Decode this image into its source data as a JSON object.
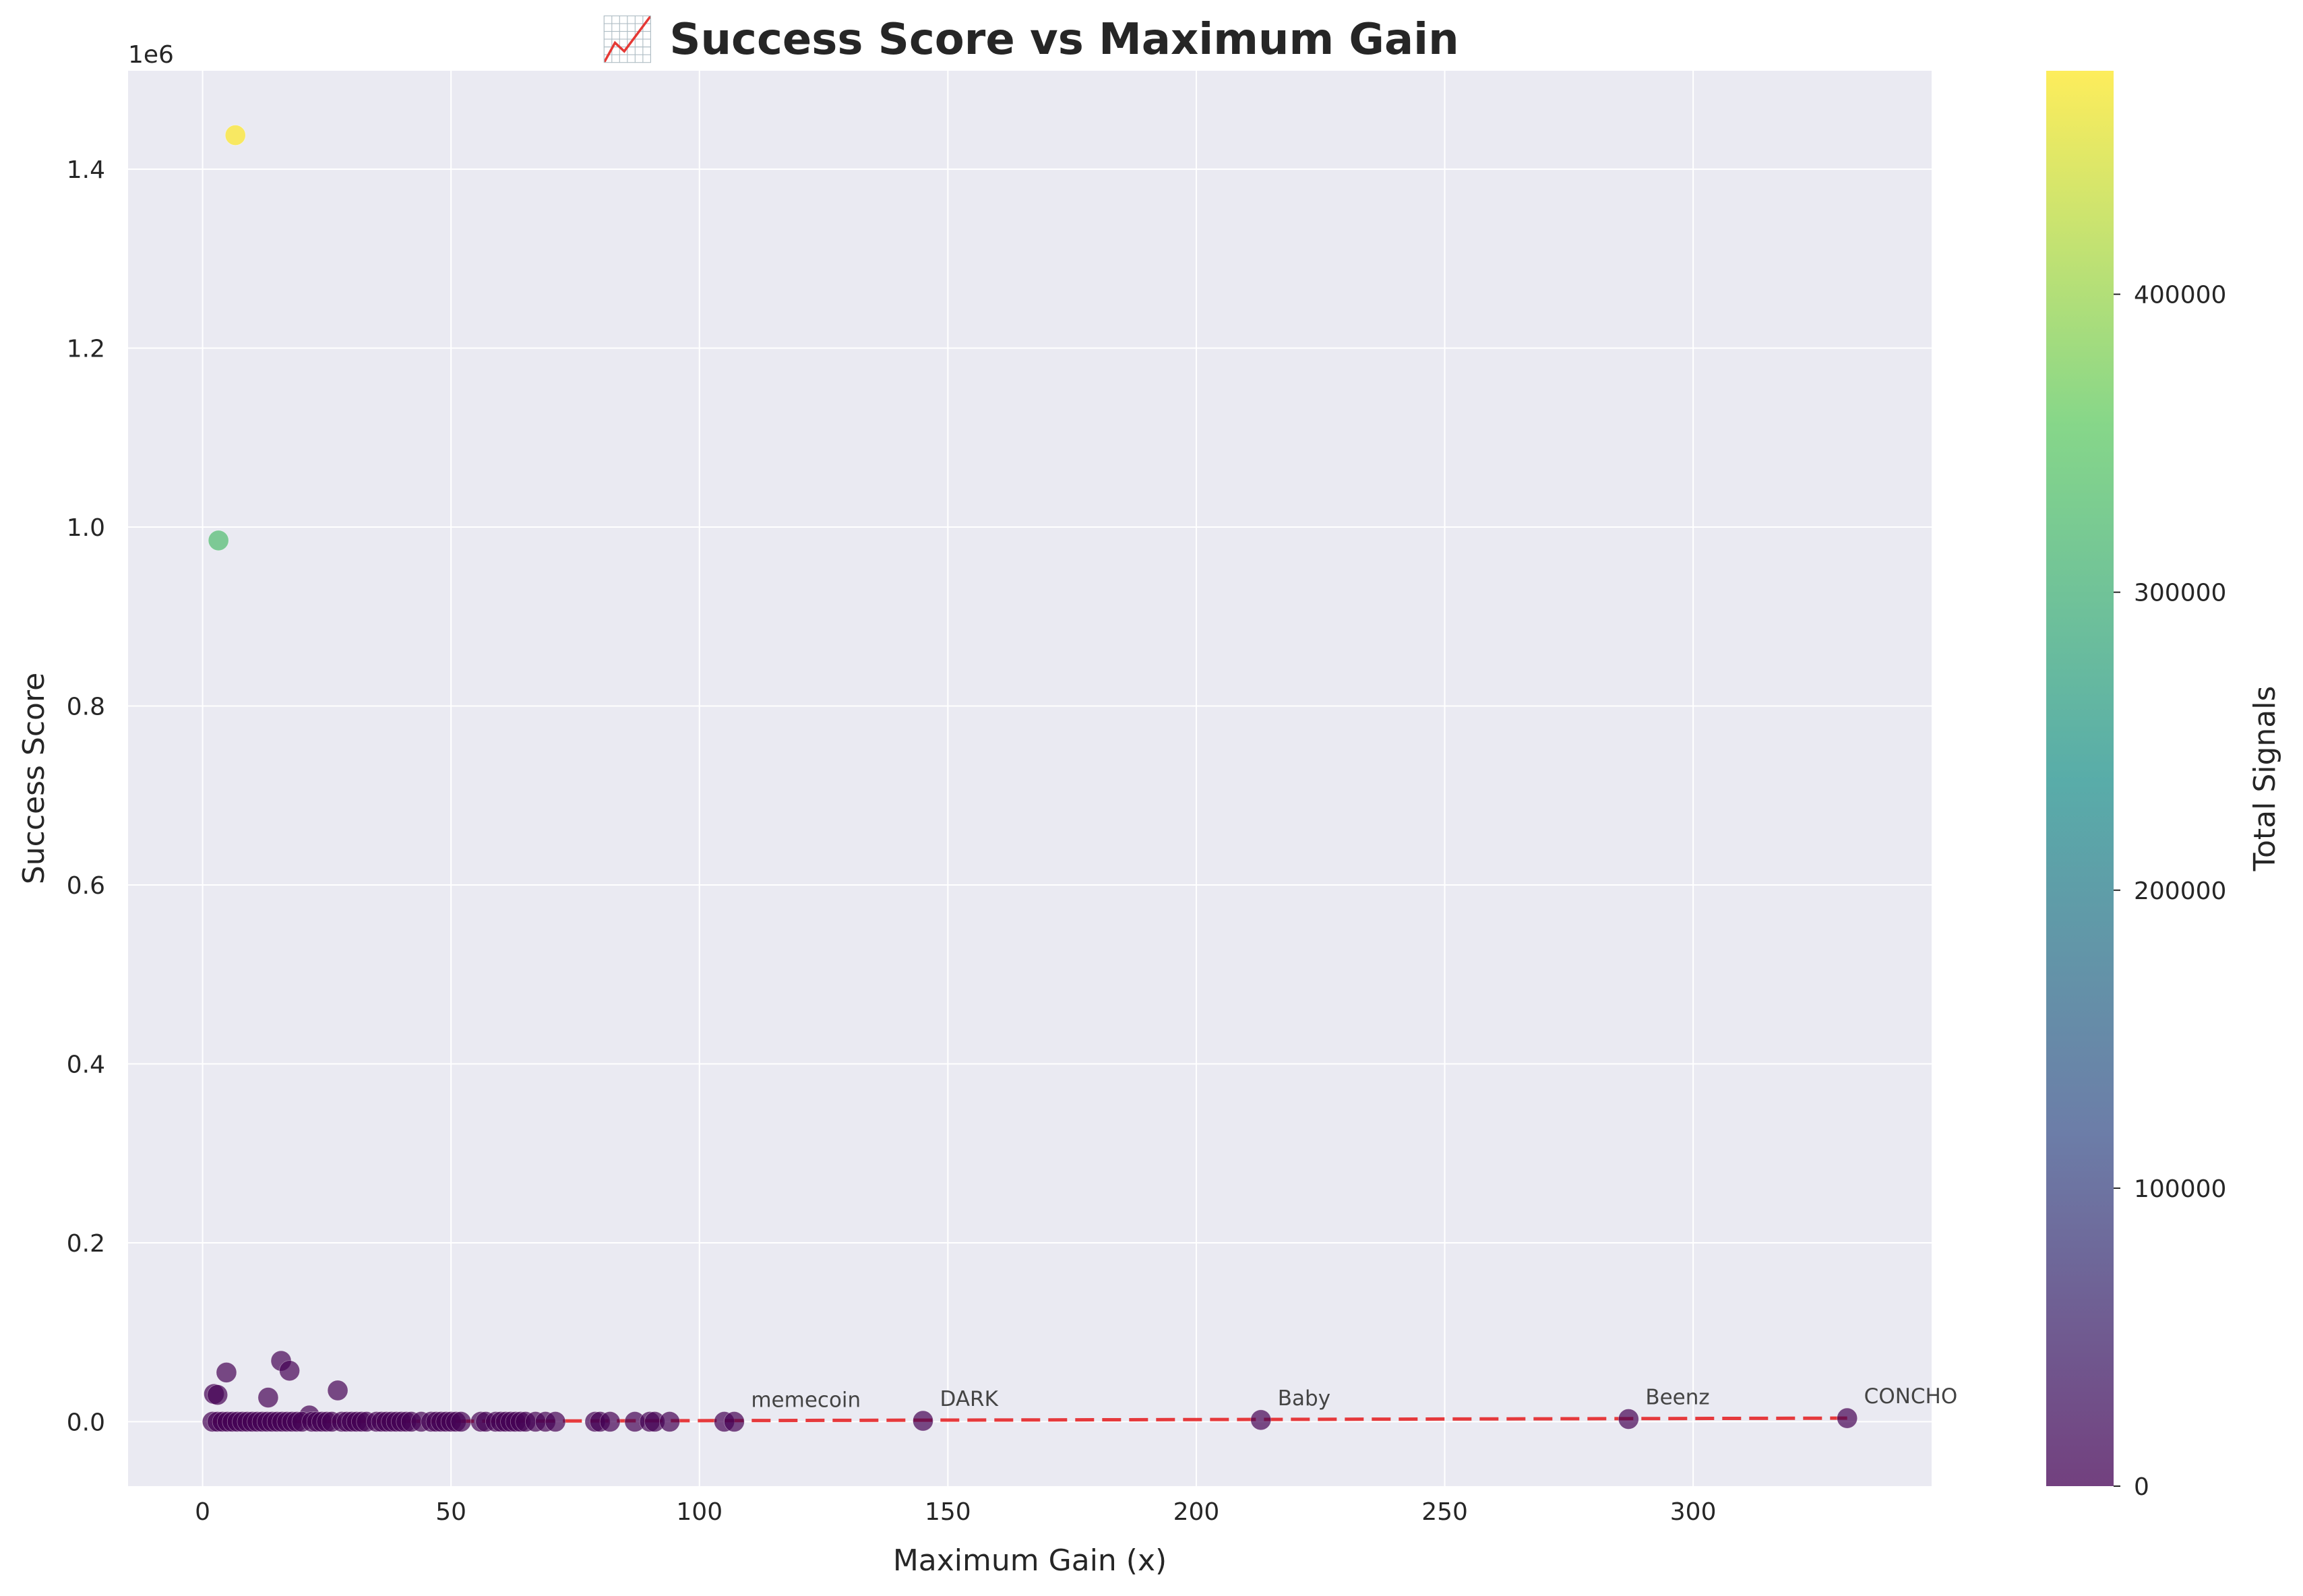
{
  "chart_data": {
    "type": "scatter",
    "title": "📈 Success Score vs Maximum Gain",
    "xlabel": "Maximum Gain (x)",
    "ylabel": "Success Score",
    "y_offset_label": "1e6",
    "xlim": [
      -15,
      348
    ],
    "ylim": [
      -0.072,
      1.51
    ],
    "x_ticks": [
      0,
      50,
      100,
      150,
      200,
      250,
      300
    ],
    "x_tick_labels": [
      "0",
      "50",
      "100",
      "150",
      "200",
      "250",
      "300"
    ],
    "y_ticks": [
      0.0,
      0.2,
      0.4,
      0.6,
      0.8,
      1.0,
      1.2,
      1.4
    ],
    "y_tick_labels": [
      "0.0",
      "0.2",
      "0.4",
      "0.6",
      "0.8",
      "1.0",
      "1.2",
      "1.4"
    ],
    "grid": true,
    "colorbar": {
      "label": "Total Signals",
      "colormap": "viridis",
      "range": [
        0,
        475000
      ],
      "ticks": [
        0,
        100000,
        200000,
        300000,
        400000
      ],
      "tick_labels": [
        "0",
        "100000",
        "200000",
        "300000",
        "400000"
      ]
    },
    "points": [
      {
        "x": 6.6,
        "y": 1.438,
        "c": 475000
      },
      {
        "x": 3.2,
        "y": 0.985,
        "c": 325000
      },
      {
        "x": 15.8,
        "y": 0.068,
        "c": 0
      },
      {
        "x": 4.8,
        "y": 0.055,
        "c": 0
      },
      {
        "x": 17.5,
        "y": 0.057,
        "c": 0
      },
      {
        "x": 27.2,
        "y": 0.035,
        "c": 0
      },
      {
        "x": 2.3,
        "y": 0.031,
        "c": 0
      },
      {
        "x": 3.0,
        "y": 0.03,
        "c": 0
      },
      {
        "x": 13.2,
        "y": 0.027,
        "c": 0
      },
      {
        "x": 21.5,
        "y": 0.007,
        "c": 0
      },
      {
        "x": 2,
        "y": 0.0,
        "c": 0
      },
      {
        "x": 3,
        "y": 0.0,
        "c": 0
      },
      {
        "x": 4,
        "y": 0.0,
        "c": 0
      },
      {
        "x": 5,
        "y": 0.0,
        "c": 0
      },
      {
        "x": 6,
        "y": 0.0,
        "c": 0
      },
      {
        "x": 7,
        "y": 0.0,
        "c": 0
      },
      {
        "x": 8,
        "y": 0.0,
        "c": 0
      },
      {
        "x": 9,
        "y": 0.0,
        "c": 0
      },
      {
        "x": 10,
        "y": 0.0,
        "c": 0
      },
      {
        "x": 11,
        "y": 0.0,
        "c": 0
      },
      {
        "x": 12,
        "y": 0.0,
        "c": 0
      },
      {
        "x": 13,
        "y": 0.0,
        "c": 0
      },
      {
        "x": 14,
        "y": 0.0,
        "c": 0
      },
      {
        "x": 15,
        "y": 0.0,
        "c": 0
      },
      {
        "x": 16,
        "y": 0.0,
        "c": 0
      },
      {
        "x": 17,
        "y": 0.0,
        "c": 0
      },
      {
        "x": 18,
        "y": 0.0,
        "c": 0
      },
      {
        "x": 19,
        "y": 0.0,
        "c": 0
      },
      {
        "x": 20,
        "y": 0.0,
        "c": 0
      },
      {
        "x": 22,
        "y": 0.0,
        "c": 0
      },
      {
        "x": 23,
        "y": 0.0,
        "c": 0
      },
      {
        "x": 24,
        "y": 0.0,
        "c": 0
      },
      {
        "x": 25,
        "y": 0.0,
        "c": 0
      },
      {
        "x": 26,
        "y": 0.0,
        "c": 0
      },
      {
        "x": 28,
        "y": 0.0,
        "c": 0
      },
      {
        "x": 29,
        "y": 0.0,
        "c": 0
      },
      {
        "x": 30,
        "y": 0.0,
        "c": 0
      },
      {
        "x": 31,
        "y": 0.0,
        "c": 0
      },
      {
        "x": 32,
        "y": 0.0,
        "c": 0
      },
      {
        "x": 33,
        "y": 0.0,
        "c": 0
      },
      {
        "x": 35,
        "y": 0.0,
        "c": 0
      },
      {
        "x": 36,
        "y": 0.0,
        "c": 0
      },
      {
        "x": 37,
        "y": 0.0,
        "c": 0
      },
      {
        "x": 38,
        "y": 0.0,
        "c": 0
      },
      {
        "x": 39,
        "y": 0.0,
        "c": 0
      },
      {
        "x": 40,
        "y": 0.0,
        "c": 0
      },
      {
        "x": 41,
        "y": 0.0,
        "c": 0
      },
      {
        "x": 42,
        "y": 0.0,
        "c": 0
      },
      {
        "x": 44,
        "y": 0.0,
        "c": 0
      },
      {
        "x": 46,
        "y": 0.0,
        "c": 0
      },
      {
        "x": 47,
        "y": 0.0,
        "c": 0
      },
      {
        "x": 48,
        "y": 0.0,
        "c": 0
      },
      {
        "x": 49,
        "y": 0.0,
        "c": 0
      },
      {
        "x": 50,
        "y": 0.0,
        "c": 0
      },
      {
        "x": 51,
        "y": 0.0,
        "c": 0
      },
      {
        "x": 52,
        "y": 0.0,
        "c": 0
      },
      {
        "x": 56,
        "y": 0.0,
        "c": 0
      },
      {
        "x": 57,
        "y": 0.0,
        "c": 0
      },
      {
        "x": 59,
        "y": 0.0,
        "c": 0
      },
      {
        "x": 60,
        "y": 0.0,
        "c": 0
      },
      {
        "x": 61,
        "y": 0.0,
        "c": 0
      },
      {
        "x": 62,
        "y": 0.0,
        "c": 0
      },
      {
        "x": 63,
        "y": 0.0,
        "c": 0
      },
      {
        "x": 64,
        "y": 0.0,
        "c": 0
      },
      {
        "x": 65,
        "y": 0.0,
        "c": 0
      },
      {
        "x": 67,
        "y": 0.0,
        "c": 0
      },
      {
        "x": 69,
        "y": 0.0,
        "c": 0
      },
      {
        "x": 71,
        "y": 0.0,
        "c": 0
      },
      {
        "x": 79,
        "y": 0.0,
        "c": 0
      },
      {
        "x": 80,
        "y": 0.0,
        "c": 0
      },
      {
        "x": 82,
        "y": 0.0,
        "c": 0
      },
      {
        "x": 87,
        "y": 0.0,
        "c": 0
      },
      {
        "x": 90,
        "y": 0.0,
        "c": 0
      },
      {
        "x": 91,
        "y": 0.0,
        "c": 0
      },
      {
        "x": 94,
        "y": 0.0,
        "c": 0
      },
      {
        "x": 105,
        "y": 0.0,
        "c": 0
      },
      {
        "x": 107,
        "y": 0.0,
        "c": 0
      },
      {
        "x": 145,
        "y": 0.001,
        "c": 0
      },
      {
        "x": 213,
        "y": 0.002,
        "c": 0
      },
      {
        "x": 287,
        "y": 0.003,
        "c": 0
      },
      {
        "x": 331,
        "y": 0.004,
        "c": 0
      }
    ],
    "annotations": [
      {
        "text": "memecoin",
        "x": 107,
        "y": 0.0
      },
      {
        "text": "DARK",
        "x": 145,
        "y": 0.001
      },
      {
        "text": "Baby",
        "x": 213,
        "y": 0.002
      },
      {
        "text": "Beenz",
        "x": 287,
        "y": 0.003
      },
      {
        "text": "CONCHO",
        "x": 331,
        "y": 0.004
      }
    ],
    "trendline": {
      "x": [
        2,
        331
      ],
      "y": [
        0.0,
        0.004
      ],
      "color": "#e41a1c",
      "style": "dashed"
    },
    "colors": {
      "axes_bg": "#eaeaf2",
      "grid": "#ffffff",
      "trend": "#e41a1c"
    }
  }
}
